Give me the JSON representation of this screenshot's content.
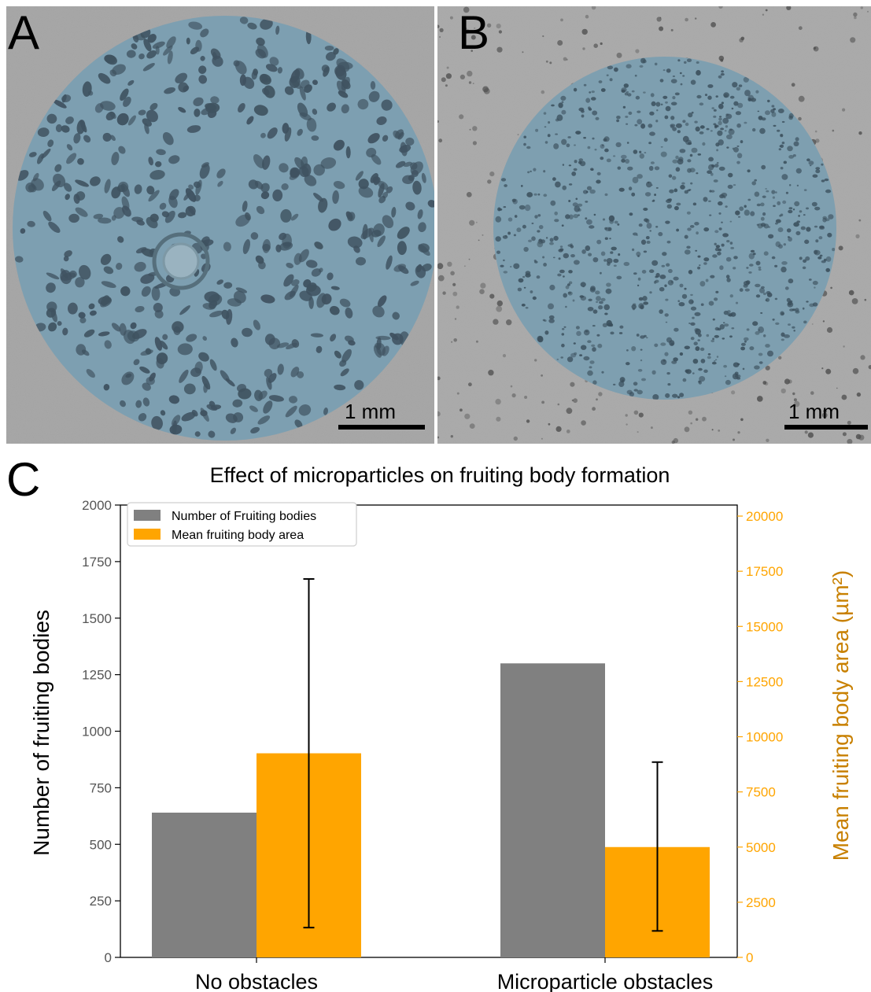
{
  "panels": {
    "a": {
      "letter": "A",
      "scale_label": "1 mm"
    },
    "b": {
      "letter": "B",
      "scale_label": "1 mm"
    },
    "c": {
      "letter": "C"
    }
  },
  "colors": {
    "number_series": "#808080",
    "area_series": "#FFA500",
    "right_axis_label": "#C88000",
    "overlay": "#7a9fb3",
    "micrograph_bg": "#a5a5a5"
  },
  "chart_data": {
    "type": "bar",
    "title": "Effect of microparticles on  fruiting body formation",
    "categories": [
      "No obstacles",
      "Microparticle obstacles"
    ],
    "ylabel": "Number of fruiting bodies",
    "ylabel_right": "Mean fruiting body area (µm²)",
    "ylim": [
      0,
      2000
    ],
    "ylim_right": [
      0,
      20500
    ],
    "yticks": [
      0,
      250,
      500,
      750,
      1000,
      1250,
      1500,
      1750,
      2000
    ],
    "yticks_right": [
      0,
      2500,
      5000,
      7500,
      10000,
      12500,
      15000,
      17500,
      20000
    ],
    "legend_position": "top-left",
    "series": [
      {
        "name": "Number of Fruiting bodies",
        "axis": "left",
        "values": [
          640,
          1300
        ]
      },
      {
        "name": "Mean fruiting body area",
        "axis": "right",
        "values": [
          9250,
          5000
        ],
        "error_low": [
          1350,
          1200
        ],
        "error_high": [
          17150,
          8850
        ]
      }
    ]
  }
}
